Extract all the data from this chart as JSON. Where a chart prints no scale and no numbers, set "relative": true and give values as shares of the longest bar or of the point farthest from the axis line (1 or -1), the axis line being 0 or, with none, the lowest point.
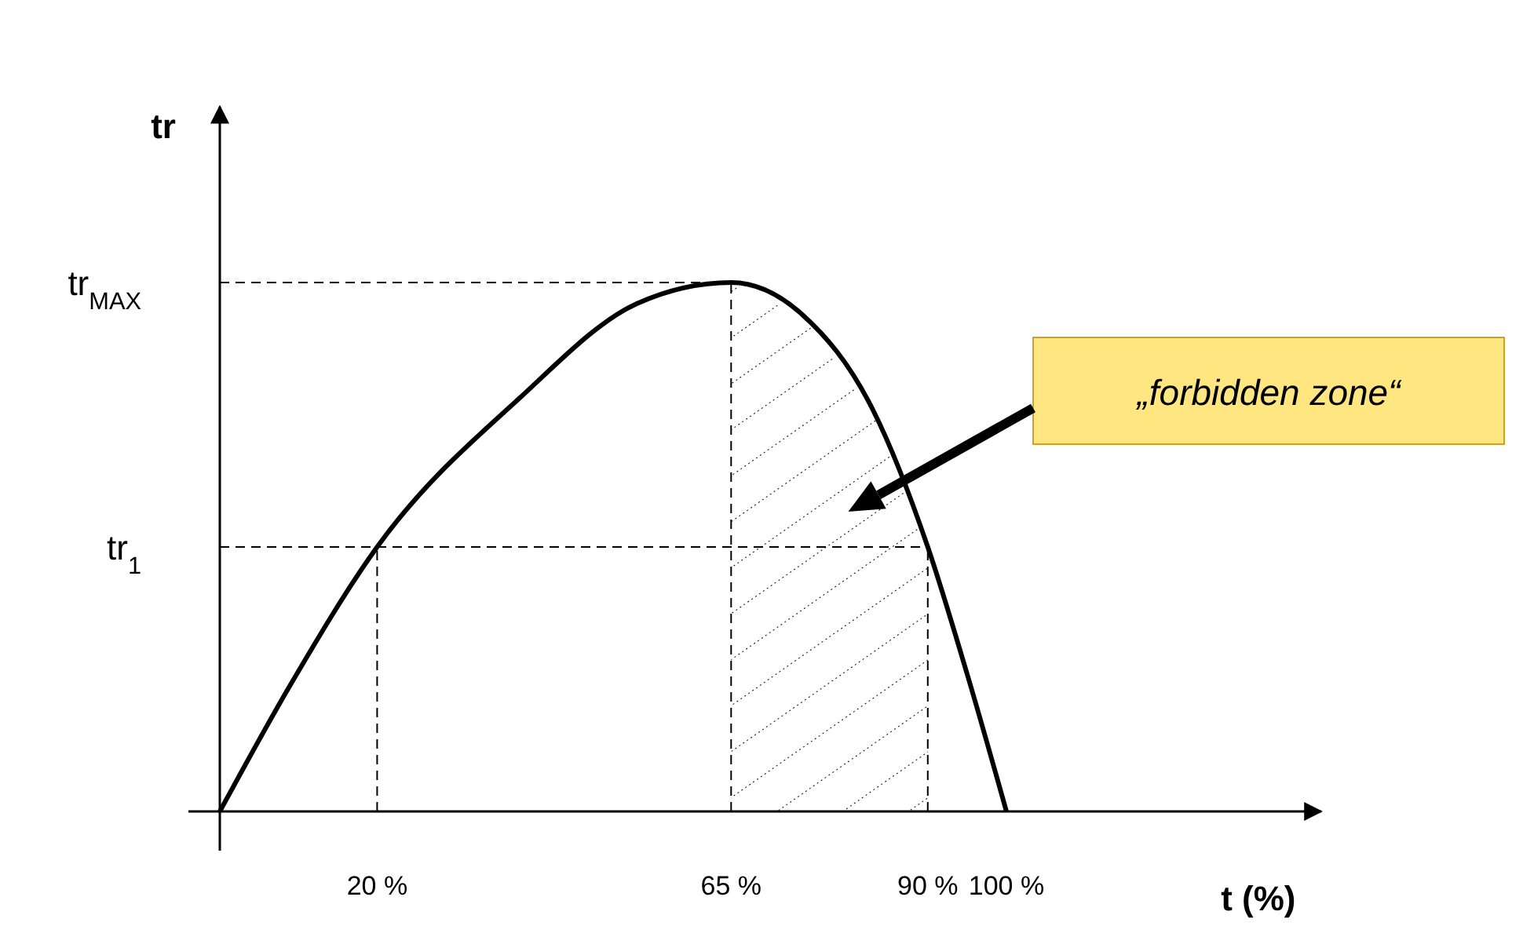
{
  "chart_data": {
    "type": "line",
    "relative": true,
    "xlabel": "t (%)",
    "ylabel": "tr",
    "xlim": [
      0,
      140
    ],
    "xticks": [
      {
        "value": 20,
        "label": "20 %"
      },
      {
        "value": 65,
        "label": "65 %"
      },
      {
        "value": 90,
        "label": "90 %"
      },
      {
        "value": 100,
        "label": "100 %"
      }
    ],
    "series": [
      {
        "color": "#000000",
        "x": [
          0,
          9,
          20,
          38,
          53,
          65,
          74,
          83,
          90,
          95,
          100
        ],
        "values": [
          0,
          0.24,
          0.5,
          0.78,
          0.96,
          1,
          0.94,
          0.76,
          0.5,
          0.26,
          0
        ]
      }
    ],
    "ref_lines": [
      {
        "axis": "y",
        "value": 1,
        "label": "tr$_{MAX}$",
        "line_style": "dashed"
      },
      {
        "axis": "y",
        "value": 0.5,
        "label": "tr$_{1}$",
        "line_style": "dashed"
      },
      {
        "axis": "x",
        "value": 20,
        "line_style": "dashed"
      },
      {
        "axis": "x",
        "value": 65,
        "line_style": "dashed"
      },
      {
        "axis": "x",
        "value": 90,
        "line_style": "dashed"
      }
    ],
    "bands": [
      {
        "axis": "x",
        "from": 65,
        "to": 90
      }
    ],
    "annotations": [
      "„forbidden zone“"
    ],
    "line_style": "solid"
  }
}
